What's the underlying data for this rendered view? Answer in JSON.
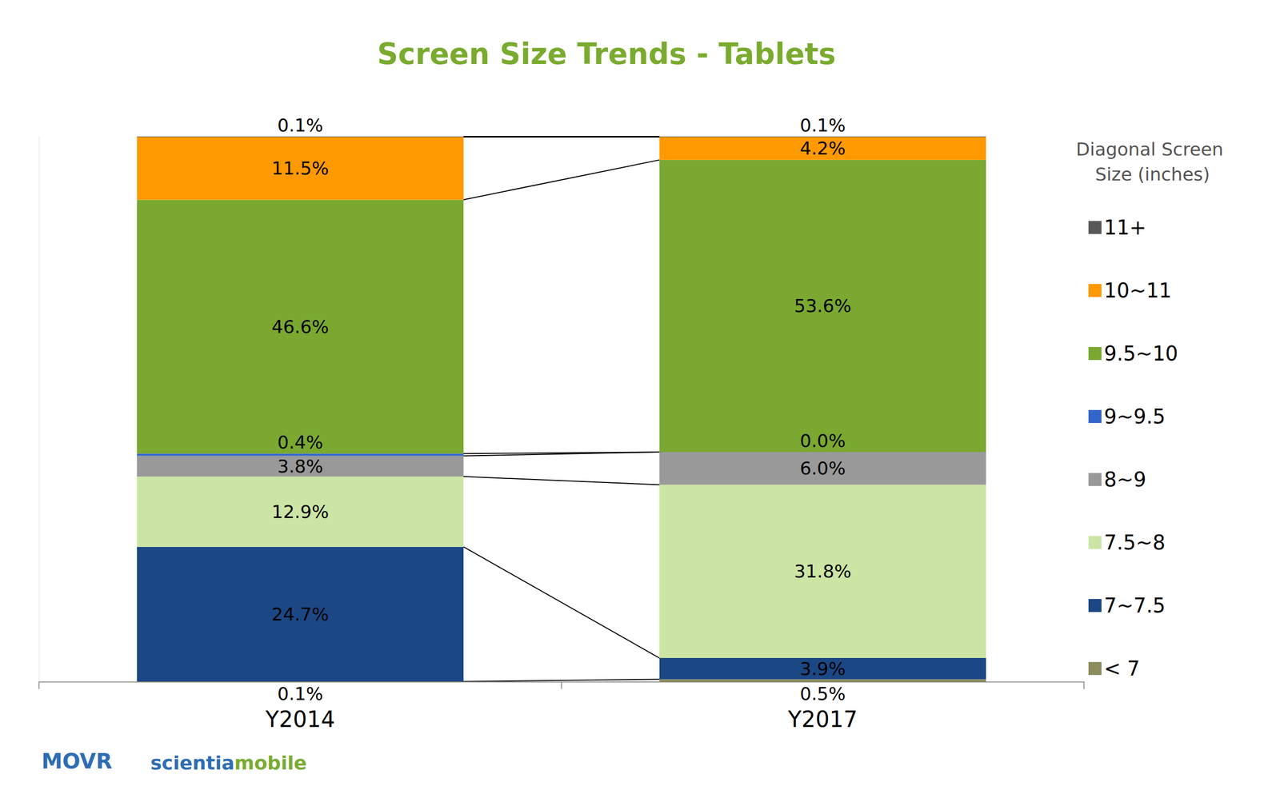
{
  "chart_data": {
    "type": "bar",
    "title": "Screen Size Trends - Tablets",
    "legend_title": "Diagonal Screen Size (inches)",
    "categories": [
      "Y2014",
      "Y2017"
    ],
    "series": [
      {
        "name": "11+",
        "color": "#595959",
        "values": [
          0.1,
          0.1
        ],
        "value_labels": [
          "0.1%",
          "0.1%"
        ]
      },
      {
        "name": "10~11",
        "color": "#ff9900",
        "values": [
          11.5,
          4.2
        ],
        "value_labels": [
          "11.5%",
          "4.2%"
        ]
      },
      {
        "name": "9.5~10",
        "color": "#7aa830",
        "values": [
          46.6,
          53.6
        ],
        "value_labels": [
          "46.6%",
          "53.6%"
        ]
      },
      {
        "name": "9~9.5",
        "color": "#3366cc",
        "values": [
          0.4,
          0.0
        ],
        "value_labels": [
          "0.4%",
          "0.0%"
        ]
      },
      {
        "name": "8~9",
        "color": "#999999",
        "values": [
          3.8,
          6.0
        ],
        "value_labels": [
          "3.8%",
          "6.0%"
        ]
      },
      {
        "name": "7.5~8",
        "color": "#cce5a5",
        "values": [
          12.9,
          31.8
        ],
        "value_labels": [
          "12.9%",
          "31.8%"
        ]
      },
      {
        "name": "7~7.5",
        "color": "#1b4785",
        "values": [
          24.7,
          3.9
        ],
        "value_labels": [
          "24.7%",
          "3.9%"
        ]
      },
      {
        "name": "< 7",
        "color": "#8c8c5f",
        "values": [
          0.1,
          0.5
        ],
        "value_labels": [
          "0.1%",
          "0.5%"
        ]
      }
    ],
    "stacked": true,
    "data_labels": true,
    "legend": "right",
    "tick_labels": "x",
    "grid": false,
    "ylim": [
      0,
      100.1
    ],
    "annotations": [
      "MOVR",
      "scientia",
      "mobile"
    ]
  }
}
